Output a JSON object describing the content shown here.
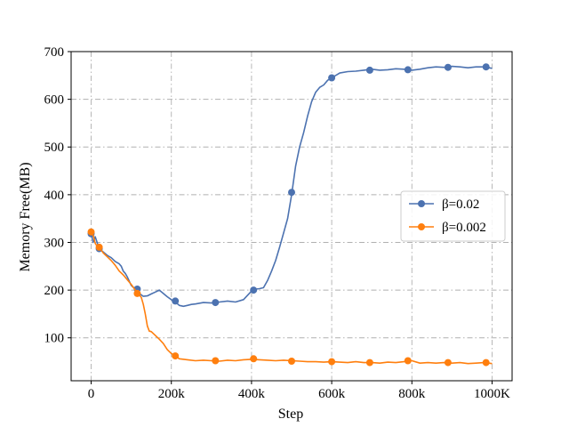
{
  "chart_data": {
    "type": "line",
    "title": "",
    "xlabel": "Step",
    "ylabel": "Memory Free(MB)",
    "xlim": [
      -50000,
      1050000
    ],
    "ylim": [
      10,
      700
    ],
    "grid": true,
    "legend_position": "center-right",
    "x_ticks": [
      {
        "value": 0,
        "label": "0"
      },
      {
        "value": 200000,
        "label": "200k"
      },
      {
        "value": 400000,
        "label": "400k"
      },
      {
        "value": 600000,
        "label": "600k"
      },
      {
        "value": 800000,
        "label": "800k"
      },
      {
        "value": 1000000,
        "label": "1000K"
      }
    ],
    "y_ticks": [
      {
        "value": 100,
        "label": "100"
      },
      {
        "value": 200,
        "label": "200"
      },
      {
        "value": 300,
        "label": "300"
      },
      {
        "value": 400,
        "label": "400"
      },
      {
        "value": 500,
        "label": "500"
      },
      {
        "value": 600,
        "label": "600"
      },
      {
        "value": 700,
        "label": "700"
      }
    ],
    "series": [
      {
        "name": "β=0.02",
        "color": "#4c72b0",
        "x": [
          0,
          5000,
          10000,
          20000,
          30000,
          40000,
          50000,
          60000,
          70000,
          75000,
          80000,
          85000,
          90000,
          100000,
          110000,
          120000,
          130000,
          140000,
          150000,
          160000,
          170000,
          180000,
          190000,
          200000,
          210000,
          220000,
          230000,
          240000,
          250000,
          260000,
          280000,
          300000,
          320000,
          340000,
          360000,
          380000,
          400000,
          410000,
          420000,
          430000,
          440000,
          450000,
          460000,
          470000,
          480000,
          490000,
          500000,
          510000,
          520000,
          530000,
          540000,
          550000,
          560000,
          570000,
          580000,
          590000,
          600000,
          620000,
          640000,
          660000,
          680000,
          700000,
          720000,
          740000,
          760000,
          780000,
          800000,
          820000,
          840000,
          860000,
          880000,
          900000,
          920000,
          940000,
          960000,
          980000,
          1000000
        ],
        "y": [
          318,
          300,
          312,
          287,
          280,
          273,
          268,
          260,
          255,
          250,
          240,
          235,
          228,
          210,
          202,
          193,
          187,
          188,
          192,
          196,
          200,
          193,
          186,
          180,
          175,
          168,
          166,
          168,
          170,
          171,
          174,
          173,
          175,
          177,
          175,
          180,
          198,
          202,
          203,
          205,
          220,
          240,
          262,
          290,
          320,
          350,
          400,
          460,
          500,
          530,
          565,
          595,
          615,
          625,
          630,
          640,
          645,
          655,
          658,
          659,
          661,
          663,
          661,
          662,
          664,
          663,
          661,
          663,
          666,
          668,
          667,
          669,
          668,
          666,
          668,
          668,
          665
        ],
        "markers_x": [
          0,
          20000,
          115000,
          210000,
          310000,
          405000,
          500000,
          600000,
          695000,
          790000,
          890000,
          985000
        ],
        "markers_y": [
          318,
          287,
          202,
          177,
          174,
          200,
          405,
          645,
          661,
          662,
          667,
          668
        ]
      },
      {
        "name": "β=0.002",
        "color": "#ff7f0e",
        "x": [
          0,
          5000,
          10000,
          15000,
          20000,
          25000,
          30000,
          40000,
          50000,
          60000,
          70000,
          80000,
          90000,
          100000,
          110000,
          115000,
          120000,
          125000,
          130000,
          135000,
          140000,
          145000,
          150000,
          160000,
          170000,
          180000,
          190000,
          200000,
          210000,
          220000,
          240000,
          260000,
          280000,
          300000,
          320000,
          340000,
          360000,
          380000,
          400000,
          420000,
          440000,
          460000,
          480000,
          500000,
          520000,
          540000,
          560000,
          580000,
          600000,
          620000,
          640000,
          660000,
          680000,
          700000,
          720000,
          740000,
          760000,
          780000,
          800000,
          820000,
          840000,
          860000,
          880000,
          900000,
          920000,
          940000,
          960000,
          980000,
          1000000
        ],
        "y": [
          322,
          315,
          298,
          292,
          290,
          284,
          278,
          270,
          262,
          252,
          240,
          232,
          222,
          212,
          200,
          193,
          190,
          185,
          170,
          150,
          125,
          114,
          113,
          105,
          97,
          88,
          75,
          67,
          62,
          56,
          54,
          52,
          53,
          52,
          51,
          53,
          52,
          54,
          55,
          54,
          53,
          52,
          53,
          52,
          51,
          50,
          50,
          49,
          50,
          49,
          48,
          50,
          48,
          48,
          47,
          49,
          48,
          50,
          52,
          47,
          48,
          47,
          48,
          47,
          48,
          46,
          47,
          48,
          46
        ],
        "markers_x": [
          0,
          20000,
          115000,
          210000,
          310000,
          405000,
          500000,
          600000,
          695000,
          790000,
          890000,
          985000
        ],
        "markers_y": [
          322,
          290,
          193,
          62,
          52,
          56,
          51,
          50,
          48,
          52,
          48,
          48
        ]
      }
    ]
  }
}
